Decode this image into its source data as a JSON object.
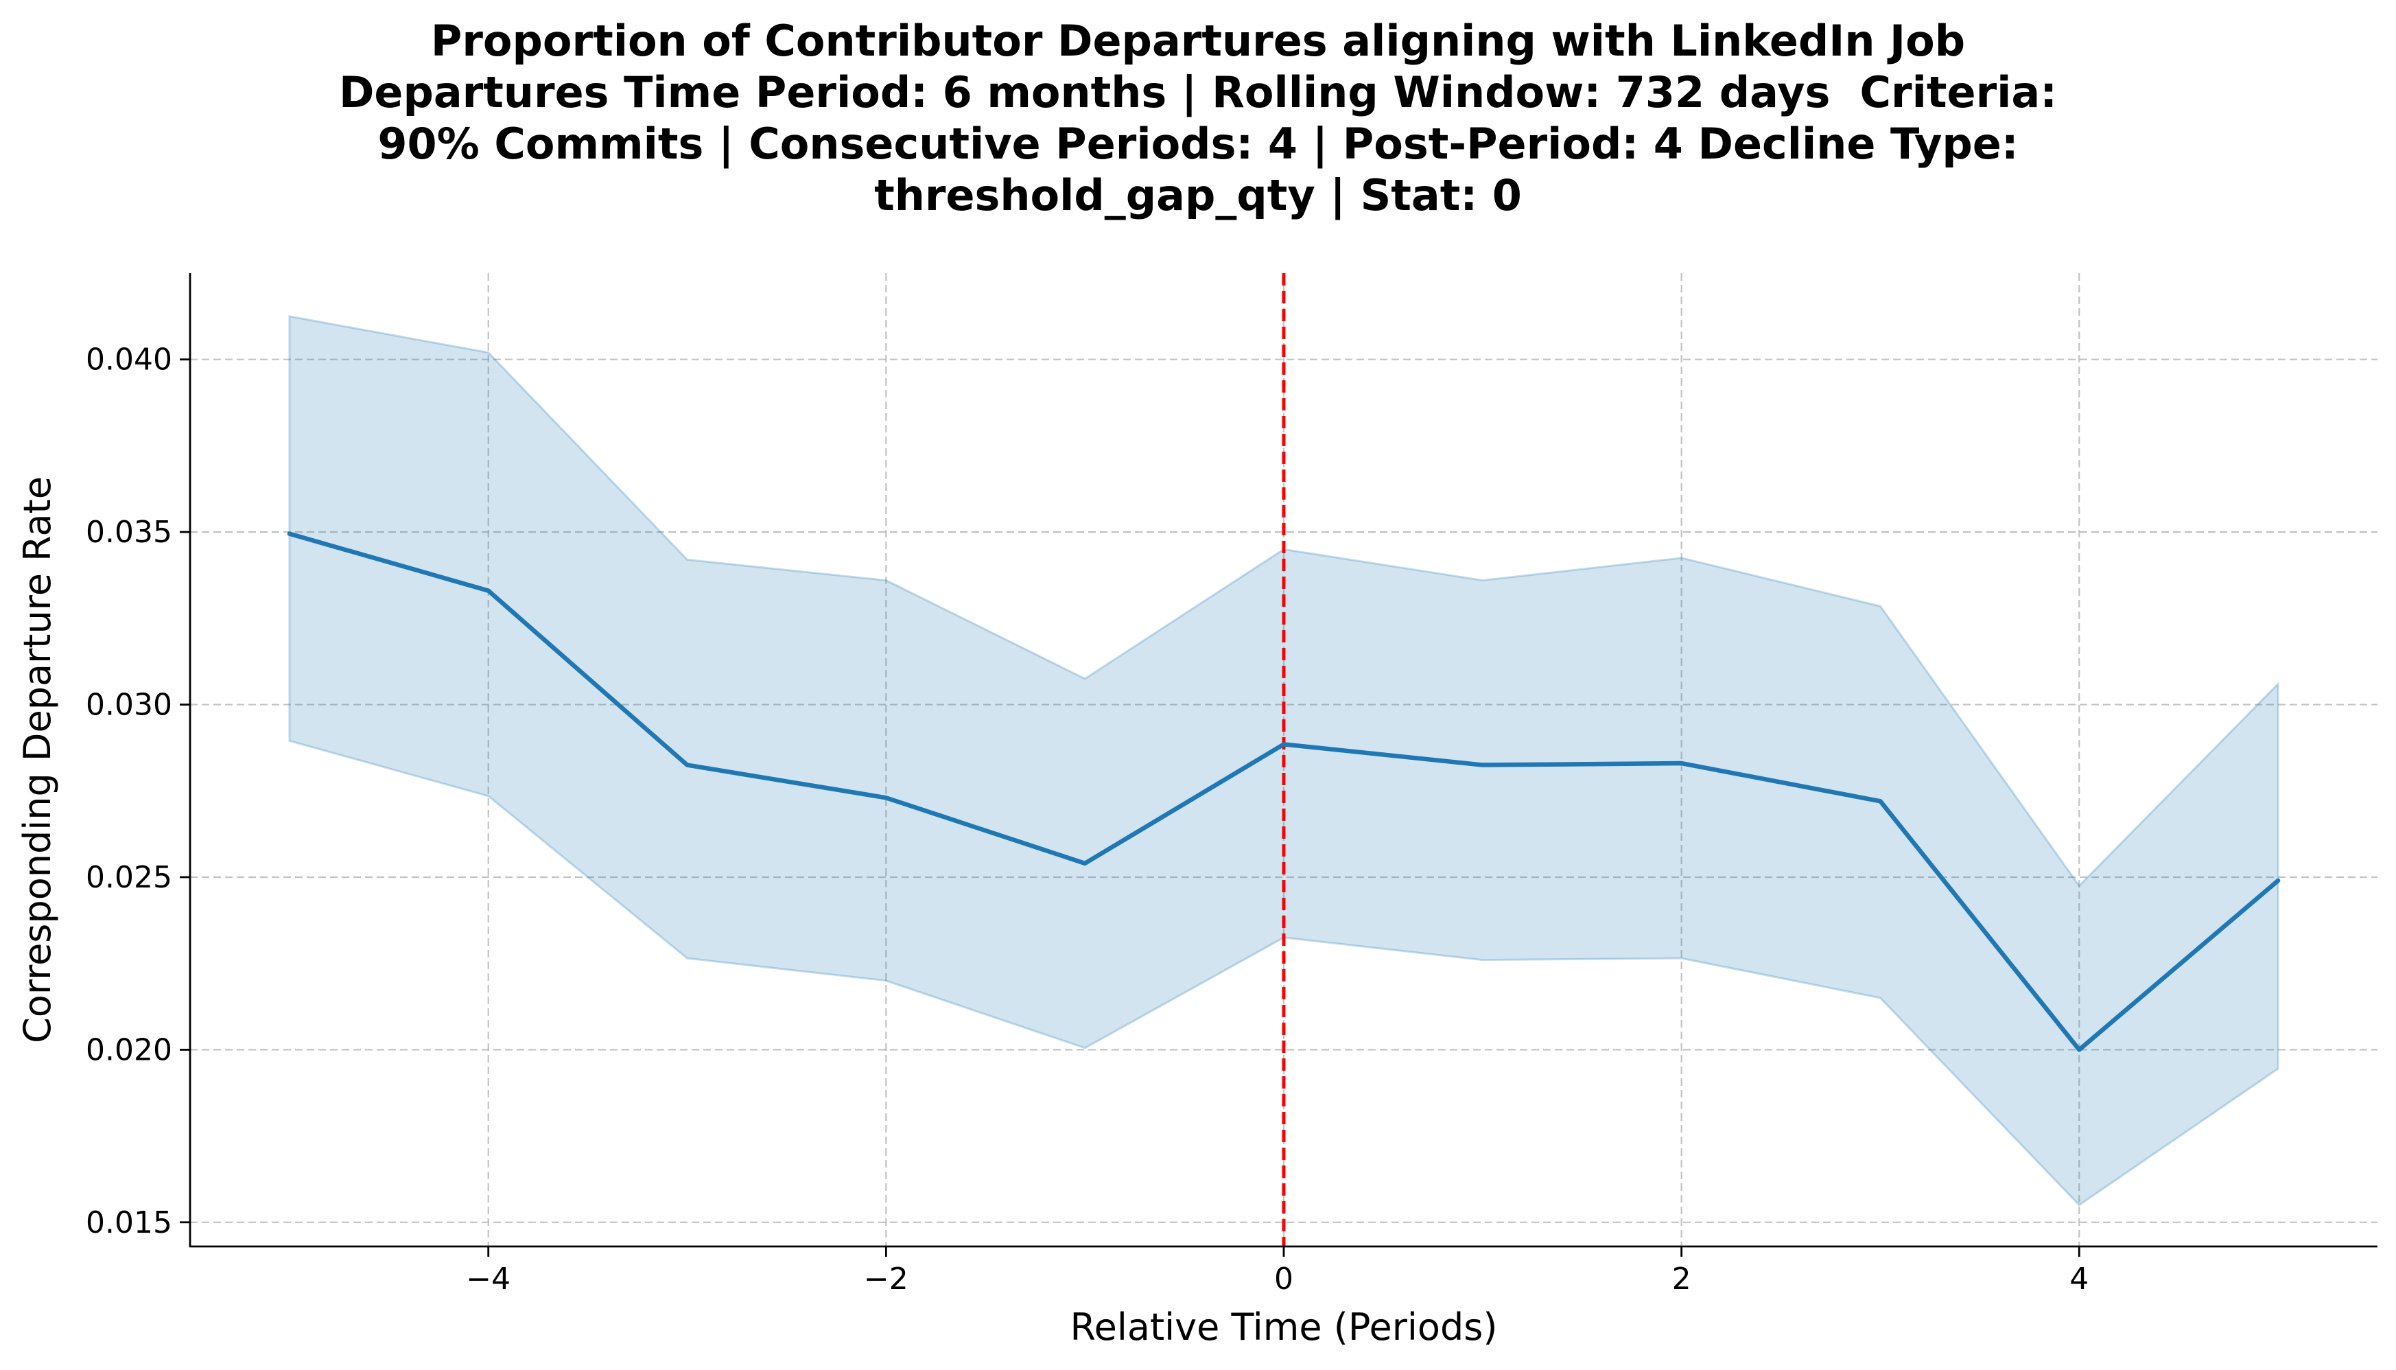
{
  "chart_data": {
    "type": "line",
    "title_lines": [
      "Proportion of Contributor Departures aligning with LinkedIn Job",
      "Departures Time Period: 6 months | Rolling Window: 732 days  Criteria:",
      "90% Commits | Consecutive Periods: 4 | Post-Period: 4 Decline Type:",
      "threshold_gap_qty | Stat: 0"
    ],
    "xlabel": "Relative Time (Periods)",
    "ylabel": "Corresponding Departure Rate",
    "x": [
      -5,
      -4,
      -3,
      -2,
      -1,
      0,
      1,
      2,
      3,
      4,
      5
    ],
    "series": [
      {
        "values": [
          0.03495,
          0.0333,
          0.02825,
          0.0273,
          0.0254,
          0.02885,
          0.02825,
          0.0283,
          0.0272,
          0.02,
          0.0249
        ],
        "ci_upper": [
          0.04125,
          0.0402,
          0.0342,
          0.0336,
          0.03075,
          0.0345,
          0.0336,
          0.03425,
          0.03285,
          0.02475,
          0.0306
        ],
        "ci_lower": [
          0.02895,
          0.02735,
          0.02265,
          0.022,
          0.02005,
          0.02325,
          0.0226,
          0.02265,
          0.0215,
          0.0155,
          0.01945
        ],
        "color": "#1f77b4",
        "band_color": "#1f77b4"
      }
    ],
    "xlim": [
      -5.5,
      5.5
    ],
    "ylim": [
      0.0143,
      0.0425
    ],
    "xticks": [
      -4,
      -2,
      0,
      2,
      4
    ],
    "xtick_labels": [
      "−4",
      "−2",
      "0",
      "2",
      "4"
    ],
    "yticks": [
      0.015,
      0.02,
      0.025,
      0.03,
      0.035,
      0.04
    ],
    "ytick_labels": [
      "0.015",
      "0.020",
      "0.025",
      "0.030",
      "0.035",
      "0.040"
    ],
    "reference_line": {
      "x": 0,
      "color": "#ff0000",
      "style": "dashed"
    },
    "grid": true
  }
}
